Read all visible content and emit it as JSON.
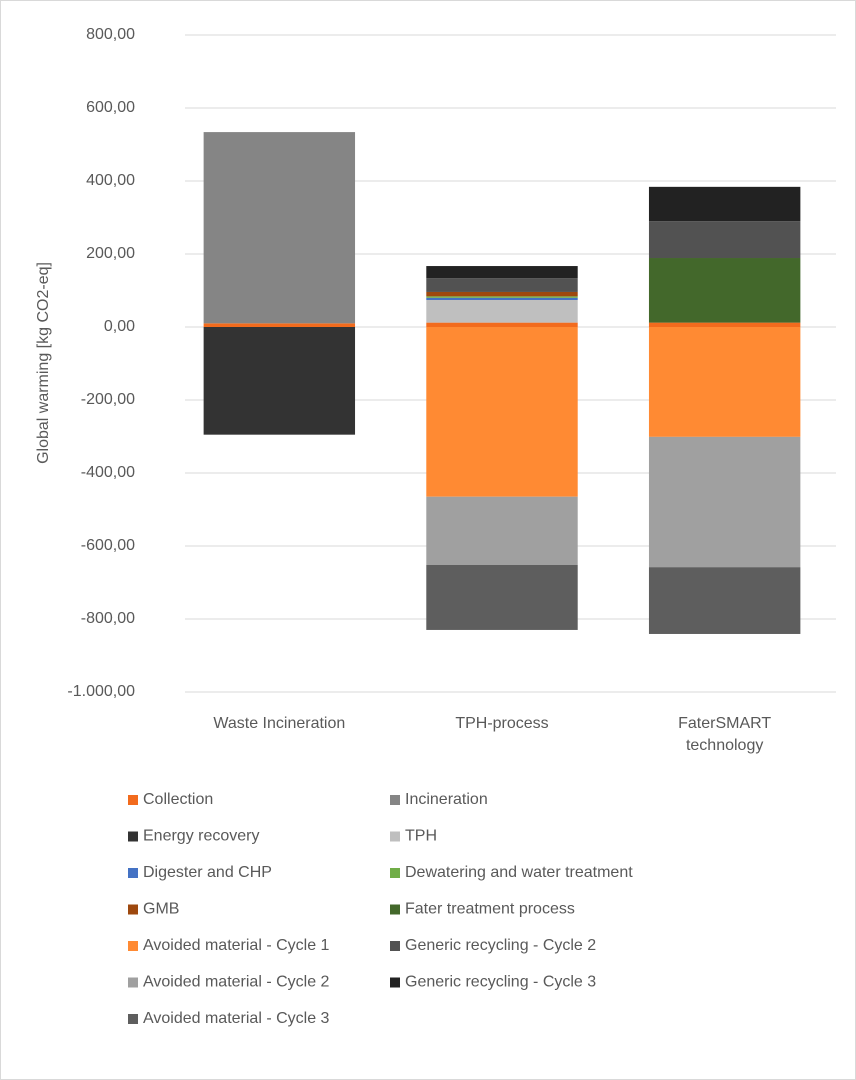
{
  "chart_data": {
    "type": "bar",
    "stacked": true,
    "y_label": "Global warming [kg CO2-eq]",
    "categories": [
      "Waste Incineration",
      "TPH-process",
      "FaterSMART technology"
    ],
    "ylim": [
      -1000,
      800
    ],
    "yticks": [
      {
        "value": -1000,
        "label": "-1.000,00"
      },
      {
        "value": -800,
        "label": "-800,00"
      },
      {
        "value": -600,
        "label": "-600,00"
      },
      {
        "value": -400,
        "label": "-400,00"
      },
      {
        "value": -200,
        "label": "-200,00"
      },
      {
        "value": 0,
        "label": "0,00"
      },
      {
        "value": 200,
        "label": "200,00"
      },
      {
        "value": 400,
        "label": "400,00"
      },
      {
        "value": 600,
        "label": "600,00"
      },
      {
        "value": 800,
        "label": "800,00"
      }
    ],
    "grid": true,
    "legend": "bottom",
    "series": [
      {
        "name": "Collection",
        "color": "#f26b1d",
        "values": [
          10,
          12,
          12
        ]
      },
      {
        "name": "Incineration",
        "color": "#858585",
        "values": [
          524,
          0,
          0
        ]
      },
      {
        "name": "Energy recovery",
        "color": "#333333",
        "values": [
          -295,
          0,
          0
        ]
      },
      {
        "name": "TPH",
        "color": "#bfbfbf",
        "values": [
          0,
          62,
          0
        ]
      },
      {
        "name": "Digester and CHP",
        "color": "#4472c4",
        "values": [
          0,
          6,
          0
        ]
      },
      {
        "name": "Dewatering and water treatment",
        "color": "#70ad47",
        "values": [
          0,
          4,
          0
        ]
      },
      {
        "name": "GMB",
        "color": "#9e480e",
        "values": [
          0,
          12,
          0
        ]
      },
      {
        "name": "Fater treatment process",
        "color": "#43682b",
        "values": [
          0,
          0,
          177
        ]
      },
      {
        "name": "Avoided material - Cycle 1",
        "color": "#ff8a33",
        "values": [
          0,
          -465,
          -301
        ]
      },
      {
        "name": "Generic recycling - Cycle 2",
        "color": "#525252",
        "values": [
          0,
          38,
          101
        ]
      },
      {
        "name": "Avoided material - Cycle 2",
        "color": "#a0a0a0",
        "values": [
          0,
          -187,
          -357
        ]
      },
      {
        "name": "Generic recycling - Cycle 3",
        "color": "#222222",
        "values": [
          0,
          33,
          94
        ]
      },
      {
        "name": "Avoided material - Cycle 3",
        "color": "#5e5e5e",
        "values": [
          0,
          -178,
          -183
        ]
      }
    ]
  }
}
